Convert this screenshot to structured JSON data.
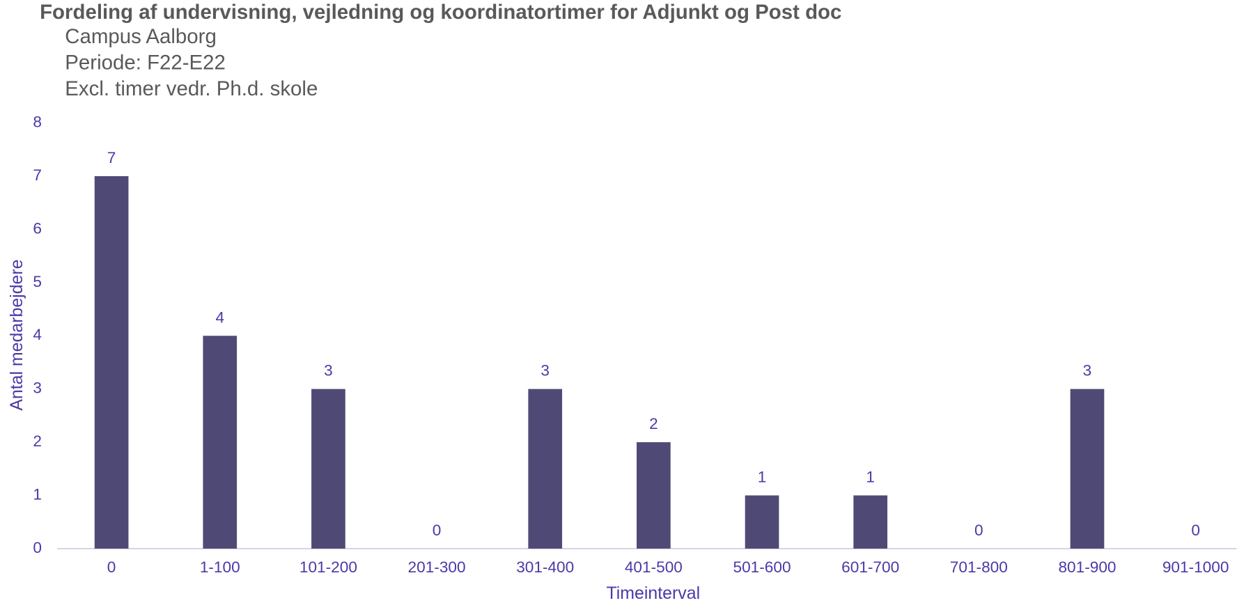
{
  "chart_data": {
    "type": "bar",
    "title": "Fordeling af undervisning, vejledning og koordinatortimer for Adjunkt og Post doc",
    "subtitle": [
      "Campus Aalborg",
      "Periode: F22-E22",
      "Excl. timer vedr. Ph.d. skole"
    ],
    "x_label": "Timeinterval",
    "y_label": "Antal medarbejdere",
    "categories": [
      "0",
      "1-100",
      "101-200",
      "201-300",
      "301-400",
      "401-500",
      "501-600",
      "601-700",
      "701-800",
      "801-900",
      "901-1000"
    ],
    "values": [
      7,
      4,
      3,
      0,
      3,
      2,
      1,
      1,
      0,
      3,
      0
    ],
    "color": "#4f4a75",
    "ylim": [
      0,
      8
    ],
    "yticks": [
      0,
      1,
      2,
      3,
      4,
      5,
      6,
      7,
      8
    ],
    "grid": false
  }
}
